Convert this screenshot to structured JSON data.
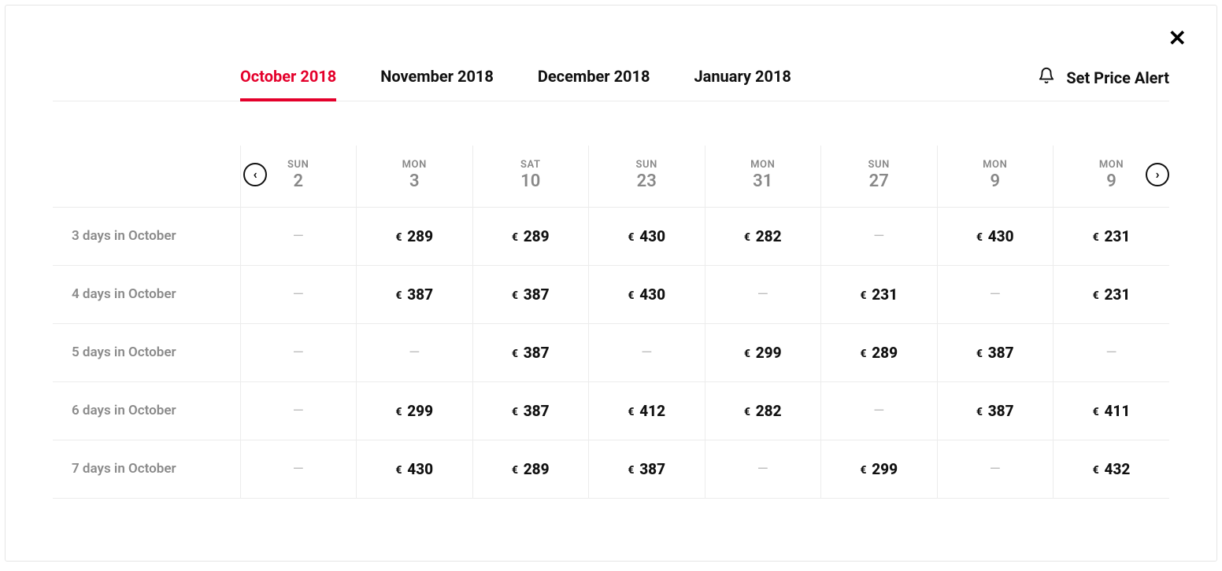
{
  "colors": {
    "accent": "#e4002b",
    "border": "#ececec",
    "muted_text": "#8a8a8a",
    "header_text": "#888888",
    "dash": "#bdbdbd",
    "text": "#111111",
    "background": "#ffffff"
  },
  "alert": {
    "label": "Set Price Alert"
  },
  "tabs": [
    {
      "label": "October 2018",
      "active": true
    },
    {
      "label": "November 2018",
      "active": false
    },
    {
      "label": "December 2018",
      "active": false
    },
    {
      "label": "January 2018",
      "active": false
    }
  ],
  "grid": {
    "currency": "€",
    "columns": [
      {
        "dow": "SUN",
        "day": "2"
      },
      {
        "dow": "MON",
        "day": "3"
      },
      {
        "dow": "SAT",
        "day": "10"
      },
      {
        "dow": "SUN",
        "day": "23"
      },
      {
        "dow": "MON",
        "day": "31"
      },
      {
        "dow": "SUN",
        "day": "27"
      },
      {
        "dow": "MON",
        "day": "9"
      },
      {
        "dow": "MON",
        "day": "9"
      }
    ],
    "rows": [
      {
        "label": "3 days in October",
        "cells": [
          null,
          "289",
          "289",
          "430",
          "282",
          null,
          "430",
          "231"
        ]
      },
      {
        "label": "4 days in October",
        "cells": [
          null,
          "387",
          "387",
          "430",
          null,
          "231",
          null,
          "231"
        ]
      },
      {
        "label": "5 days in October",
        "cells": [
          null,
          null,
          "387",
          null,
          "299",
          "289",
          "387",
          null
        ]
      },
      {
        "label": "6 days in October",
        "cells": [
          null,
          "299",
          "387",
          "412",
          "282",
          null,
          "387",
          "411"
        ]
      },
      {
        "label": "7 days in October",
        "cells": [
          null,
          "430",
          "289",
          "387",
          null,
          "299",
          null,
          "432"
        ]
      }
    ]
  }
}
